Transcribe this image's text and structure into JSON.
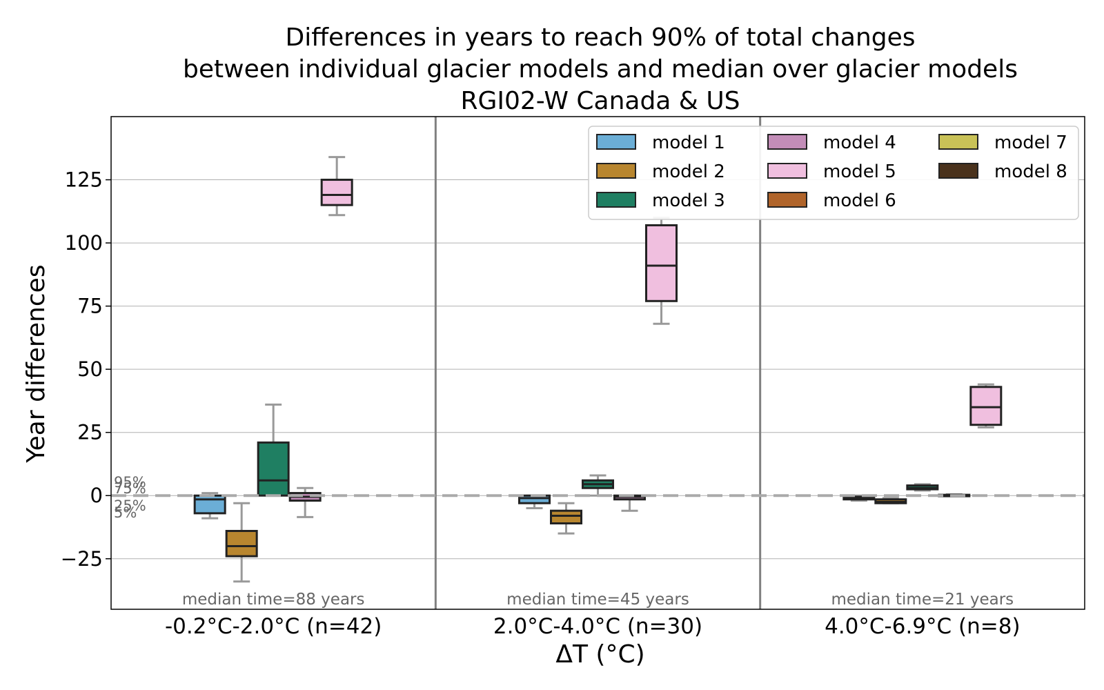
{
  "chart_data": {
    "type": "box",
    "title": [
      "Differences in years to reach 90% of total changes",
      "between individual glacier models and median over glacier models",
      "RGI02-W Canada & US"
    ],
    "xlabel": "ΔT (°C)",
    "ylabel": "Year differences",
    "ylim": [
      -45,
      150
    ],
    "yticks": [
      -25,
      0,
      25,
      50,
      75,
      100,
      125
    ],
    "grid": true,
    "legend_position": "top-right",
    "reference_line": 0,
    "percentile_labels": [
      "95%",
      "75%",
      "25%",
      "5%"
    ],
    "models": [
      {
        "name": "model 1",
        "color": "#6baed6"
      },
      {
        "name": "model 2",
        "color": "#b8862f"
      },
      {
        "name": "model 3",
        "color": "#1f7f62"
      },
      {
        "name": "model 4",
        "color": "#c38db8"
      },
      {
        "name": "model 5",
        "color": "#f0bfdf"
      },
      {
        "name": "model 6",
        "color": "#b0642a"
      },
      {
        "name": "model 7",
        "color": "#c9c257"
      },
      {
        "name": "model 8",
        "color": "#4a321c"
      }
    ],
    "groups": [
      {
        "label": "-0.2°C-2.0°C (n=42)",
        "note": "median time=88 years",
        "boxes": [
          {
            "model": "model 1",
            "p5": -9,
            "q1": -7,
            "median": -1.5,
            "q3": 0,
            "p95": 1
          },
          {
            "model": "model 2",
            "p5": -34,
            "q1": -24,
            "median": -20,
            "q3": -14,
            "p95": -3
          },
          {
            "model": "model 3",
            "p5": 0,
            "q1": 0,
            "median": 6,
            "q3": 21,
            "p95": 36
          },
          {
            "model": "model 4",
            "p5": -8.5,
            "q1": -2,
            "median": -0.5,
            "q3": 1,
            "p95": 3
          },
          {
            "model": "model 5",
            "p5": 111,
            "q1": 115,
            "median": 119,
            "q3": 125,
            "p95": 134
          }
        ]
      },
      {
        "label": "2.0°C-4.0°C (n=30)",
        "note": "median time=45 years",
        "boxes": [
          {
            "model": "model 1",
            "p5": -5,
            "q1": -3,
            "median": -1,
            "q3": 0,
            "p95": 0
          },
          {
            "model": "model 2",
            "p5": -15,
            "q1": -11,
            "median": -8,
            "q3": -6,
            "p95": -3
          },
          {
            "model": "model 3",
            "p5": 0,
            "q1": 3,
            "median": 4.5,
            "q3": 6,
            "p95": 8
          },
          {
            "model": "model 4",
            "p5": -6,
            "q1": -1.5,
            "median": -0.5,
            "q3": 0,
            "p95": 0
          },
          {
            "model": "model 5",
            "p5": 68,
            "q1": 77,
            "median": 91,
            "q3": 107,
            "p95": 110
          }
        ]
      },
      {
        "label": "4.0°C-6.9°C (n=8)",
        "note": "median time=21 years",
        "boxes": [
          {
            "model": "model 1",
            "p5": -2,
            "q1": -1.5,
            "median": -1,
            "q3": -0.5,
            "p95": 0
          },
          {
            "model": "model 2",
            "p5": -3,
            "q1": -3,
            "median": -2.5,
            "q3": -1.5,
            "p95": -1
          },
          {
            "model": "model 3",
            "p5": 2,
            "q1": 2.5,
            "median": 3,
            "q3": 4,
            "p95": 4.5
          },
          {
            "model": "model 4",
            "p5": 0,
            "q1": 0,
            "median": 0,
            "q3": 0.3,
            "p95": 0.5
          },
          {
            "model": "model 5",
            "p5": 27,
            "q1": 28,
            "median": 35,
            "q3": 43,
            "p95": 44
          }
        ]
      }
    ]
  }
}
